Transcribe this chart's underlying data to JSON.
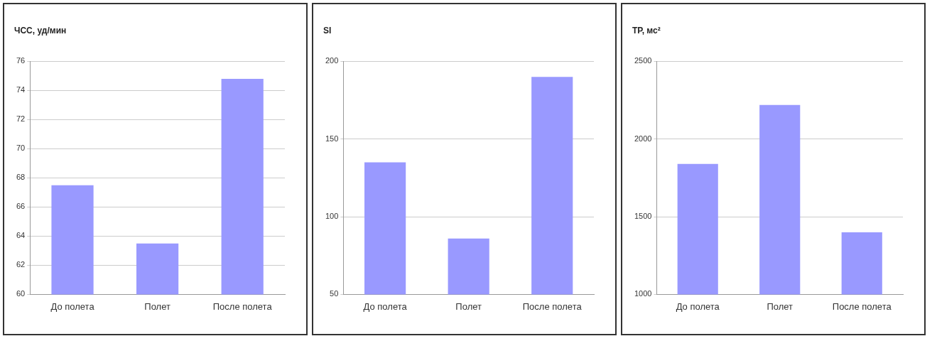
{
  "chart_data": [
    {
      "type": "bar",
      "ylabel": "ЧСС, уд/мин",
      "categories": [
        "До полета",
        "Полет",
        "После полета"
      ],
      "values": [
        67.5,
        63.5,
        74.8
      ],
      "color": "#9999ff",
      "ylim": [
        60,
        76
      ],
      "yticks": [
        60,
        62,
        64,
        66,
        68,
        70,
        72,
        74,
        76
      ],
      "grid": "y"
    },
    {
      "type": "bar",
      "ylabel": "SI",
      "categories": [
        "До полета",
        "Полет",
        "После полета"
      ],
      "values": [
        135,
        86,
        190
      ],
      "color": "#9999ff",
      "ylim": [
        50,
        200
      ],
      "yticks": [
        50,
        100,
        150,
        200
      ],
      "grid": "y"
    },
    {
      "type": "bar",
      "ylabel": "ТР, мс²",
      "categories": [
        "До полета",
        "Полет",
        "После полета"
      ],
      "values": [
        1840,
        2220,
        1400
      ],
      "color": "#9999ff",
      "ylim": [
        1000,
        2500
      ],
      "yticks": [
        1000,
        1500,
        2000,
        2500
      ],
      "grid": "y"
    }
  ]
}
